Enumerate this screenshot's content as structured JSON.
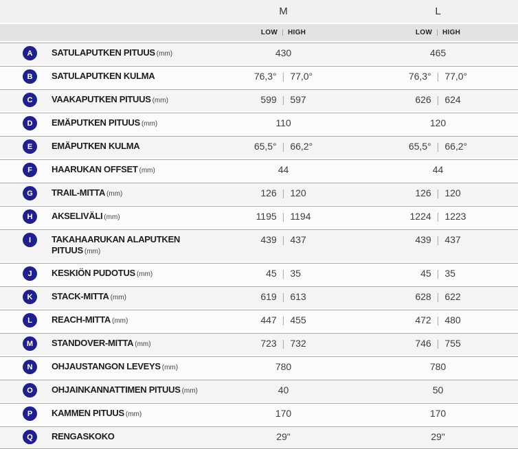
{
  "value_separator": "|",
  "table": {
    "size_columns": [
      {
        "label": "M"
      },
      {
        "label": "L"
      }
    ],
    "subheader": {
      "low": "LOW",
      "high": "HIGH"
    },
    "rows": [
      {
        "letter": "A",
        "label": "SATULAPUTKEN PITUUS",
        "unit": "(mm)",
        "m": [
          "430"
        ],
        "l": [
          "465"
        ]
      },
      {
        "letter": "B",
        "label": "SATULAPUTKEN KULMA",
        "unit": "",
        "m": [
          "76,3°",
          "77,0°"
        ],
        "l": [
          "76,3°",
          "77,0°"
        ]
      },
      {
        "letter": "C",
        "label": "VAAKAPUTKEN PITUUS",
        "unit": "(mm)",
        "m": [
          "599",
          "597"
        ],
        "l": [
          "626",
          "624"
        ]
      },
      {
        "letter": "D",
        "label": "EMÄPUTKEN PITUUS",
        "unit": "(mm)",
        "m": [
          "110"
        ],
        "l": [
          "120"
        ]
      },
      {
        "letter": "E",
        "label": "EMÄPUTKEN KULMA",
        "unit": "",
        "m": [
          "65,5°",
          "66,2°"
        ],
        "l": [
          "65,5°",
          "66,2°"
        ]
      },
      {
        "letter": "F",
        "label": "HAARUKAN OFFSET",
        "unit": "(mm)",
        "m": [
          "44"
        ],
        "l": [
          "44"
        ]
      },
      {
        "letter": "G",
        "label": "TRAIL-MITTA",
        "unit": "(mm)",
        "m": [
          "126",
          "120"
        ],
        "l": [
          "126",
          "120"
        ]
      },
      {
        "letter": "H",
        "label": "AKSELIVÄLI",
        "unit": "(mm)",
        "m": [
          "1195",
          "1194"
        ],
        "l": [
          "1224",
          "1223"
        ]
      },
      {
        "letter": "I",
        "label": "TAKAHAARUKAN ALAPUTKEN PITUUS",
        "unit": "(mm)",
        "m": [
          "439",
          "437"
        ],
        "l": [
          "439",
          "437"
        ]
      },
      {
        "letter": "J",
        "label": "KESKIÖN PUDOTUS",
        "unit": "(mm)",
        "m": [
          "45",
          "35"
        ],
        "l": [
          "45",
          "35"
        ]
      },
      {
        "letter": "K",
        "label": "STACK-MITTA",
        "unit": "(mm)",
        "m": [
          "619",
          "613"
        ],
        "l": [
          "628",
          "622"
        ]
      },
      {
        "letter": "L",
        "label": "REACH-MITTA",
        "unit": "(mm)",
        "m": [
          "447",
          "455"
        ],
        "l": [
          "472",
          "480"
        ]
      },
      {
        "letter": "M",
        "label": "STANDOVER-MITTA",
        "unit": "(mm)",
        "m": [
          "723",
          "732"
        ],
        "l": [
          "746",
          "755"
        ]
      },
      {
        "letter": "N",
        "label": "OHJAUSTANGON LEVEYS",
        "unit": "(mm)",
        "m": [
          "780"
        ],
        "l": [
          "780"
        ]
      },
      {
        "letter": "O",
        "label": "OHJAINKANNATTIMEN PITUUS",
        "unit": "(mm)",
        "m": [
          "40"
        ],
        "l": [
          "50"
        ]
      },
      {
        "letter": "P",
        "label": "KAMMEN PITUUS",
        "unit": "(mm)",
        "m": [
          "170"
        ],
        "l": [
          "170"
        ]
      },
      {
        "letter": "Q",
        "label": "RENGASKOKO",
        "unit": "",
        "m": [
          "29\""
        ],
        "l": [
          "29\""
        ]
      }
    ]
  },
  "colors": {
    "badge": "#20208c",
    "header_bg": "#f1f1f1",
    "subheader_bg": "#e3e3e3",
    "row_odd_bg": "#f4f4f4",
    "row_even_bg": "#fbfbfb",
    "divider": "#a9a9a9",
    "label_text": "#1d1d1d",
    "value_text": "#3c3c3c",
    "separator_text": "#b0b0b0"
  }
}
